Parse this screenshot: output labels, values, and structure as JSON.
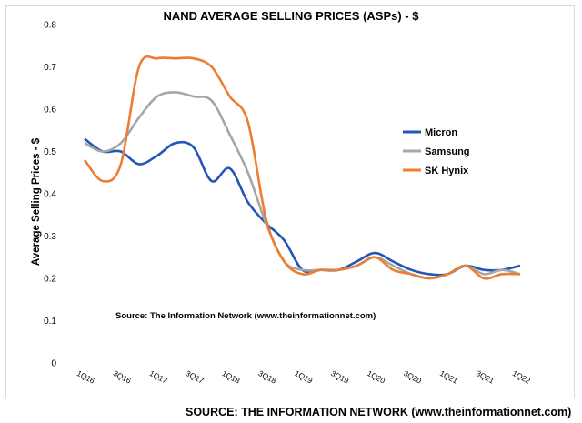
{
  "chart_data": {
    "type": "line",
    "title": "NAND AVERAGE SELLING PRICES (ASPs) - $",
    "ylabel": "Average Selling Prices - $",
    "xlabel": "",
    "ylim": [
      0,
      0.8
    ],
    "yticks": [
      "0",
      "0.1",
      "0.2",
      "0.3",
      "0.4",
      "0.5",
      "0.6",
      "0.7",
      "0.8"
    ],
    "categories": [
      "1Q16",
      "2Q16",
      "3Q16",
      "4Q16",
      "1Q17",
      "2Q17",
      "3Q17",
      "4Q17",
      "1Q18",
      "2Q18",
      "3Q18",
      "4Q18",
      "1Q19",
      "2Q19",
      "3Q19",
      "4Q19",
      "1Q20",
      "2Q20",
      "3Q20",
      "4Q20",
      "1Q21",
      "2Q21",
      "3Q21",
      "4Q21",
      "1Q22"
    ],
    "tick_labels": [
      "1Q16",
      "3Q16",
      "1Q17",
      "3Q17",
      "1Q18",
      "3Q18",
      "1Q19",
      "3Q19",
      "1Q20",
      "3Q20",
      "1Q21",
      "3Q21",
      "1Q22"
    ],
    "grid": false,
    "legend": "right",
    "annotation": "Source: The Information Network (www.theinformationnet.com)",
    "series": [
      {
        "name": "Micron",
        "color": "#2456b8",
        "values": [
          0.53,
          0.5,
          0.5,
          0.47,
          0.49,
          0.52,
          0.51,
          0.43,
          0.46,
          0.38,
          0.33,
          0.29,
          0.22,
          0.22,
          0.22,
          0.24,
          0.26,
          0.24,
          0.22,
          0.21,
          0.21,
          0.23,
          0.22,
          0.22,
          0.23
        ]
      },
      {
        "name": "Samsung",
        "color": "#a6a6a6",
        "values": [
          0.52,
          0.5,
          0.52,
          0.58,
          0.63,
          0.64,
          0.63,
          0.62,
          0.54,
          0.45,
          0.33,
          0.24,
          0.22,
          0.22,
          0.22,
          0.23,
          0.25,
          0.23,
          0.21,
          0.2,
          0.21,
          0.23,
          0.21,
          0.22,
          0.21
        ]
      },
      {
        "name": "SK Hynix",
        "color": "#ed7d31",
        "values": [
          0.48,
          0.43,
          0.47,
          0.7,
          0.72,
          0.72,
          0.72,
          0.7,
          0.63,
          0.57,
          0.34,
          0.24,
          0.21,
          0.22,
          0.22,
          0.23,
          0.25,
          0.22,
          0.21,
          0.2,
          0.21,
          0.23,
          0.2,
          0.21,
          0.21
        ]
      }
    ]
  },
  "footer": {
    "source": "SOURCE: THE INFORMATION NETWORK (www.theinformationnet.com)"
  }
}
